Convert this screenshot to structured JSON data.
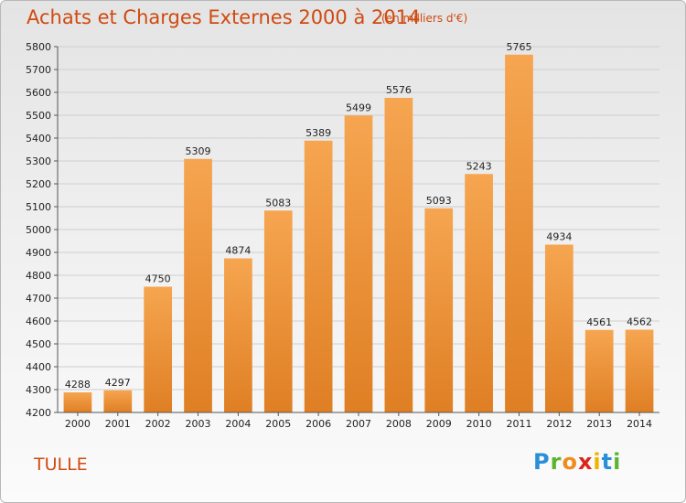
{
  "title": "Achats et Charges Externes 2000 à 2014",
  "subtitle": "(en milliers d'€)",
  "place": "TULLE",
  "logo": {
    "letters": [
      {
        "ch": "P",
        "color": "#2a8fd6"
      },
      {
        "ch": "r",
        "color": "#5cb531"
      },
      {
        "ch": "o",
        "color": "#f08c1e"
      },
      {
        "ch": "x",
        "color": "#d9261c"
      },
      {
        "ch": "i",
        "color": "#f0b400"
      },
      {
        "ch": "t",
        "color": "#2a8fd6"
      },
      {
        "ch": "i",
        "color": "#5cb531"
      }
    ]
  },
  "colors": {
    "bar_top": "#f6a550",
    "bar_bottom": "#df7f24",
    "text_accent": "#d04a10"
  },
  "chart_data": {
    "type": "bar",
    "title": "Achats et Charges Externes 2000 à 2014",
    "subtitle": "(en milliers d'€)",
    "categories": [
      "2000",
      "2001",
      "2002",
      "2003",
      "2004",
      "2005",
      "2006",
      "2007",
      "2008",
      "2009",
      "2010",
      "2011",
      "2012",
      "2013",
      "2014"
    ],
    "values": [
      4288,
      4297,
      4750,
      5309,
      4874,
      5083,
      5389,
      5499,
      5576,
      5093,
      5243,
      5765,
      4934,
      4561,
      4562
    ],
    "ylim": [
      4200,
      5800
    ],
    "yticks": [
      4200,
      4300,
      4400,
      4500,
      4600,
      4700,
      4800,
      4900,
      5000,
      5100,
      5200,
      5300,
      5400,
      5500,
      5600,
      5700,
      5800
    ],
    "grid": true,
    "data_labels": true
  }
}
